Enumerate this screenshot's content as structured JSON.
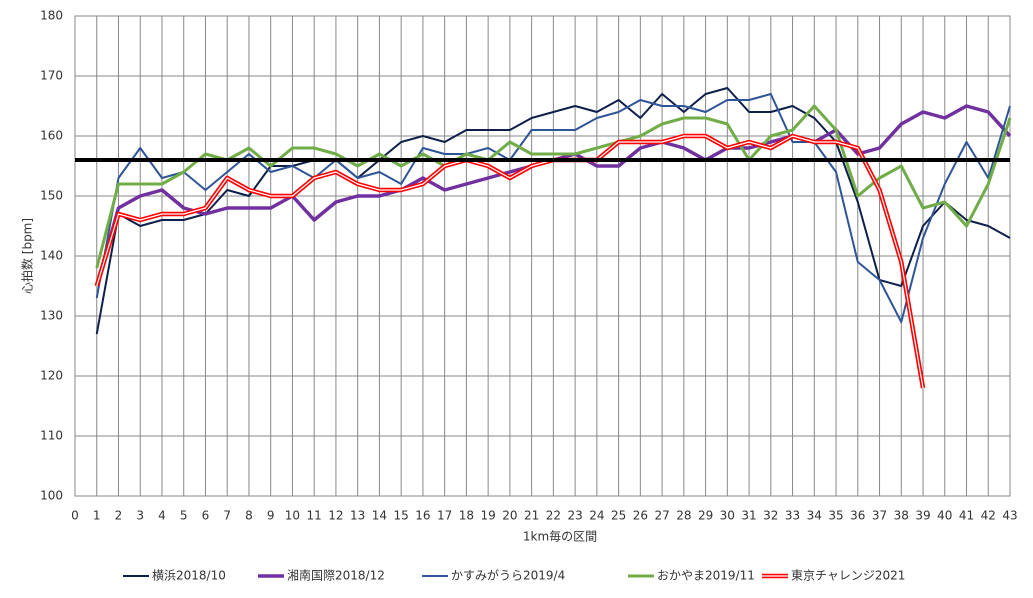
{
  "chart_data": {
    "type": "line",
    "x_label": "1km毎の区間",
    "y_label": "心拍数 [bpm]",
    "x": [
      1,
      2,
      3,
      4,
      5,
      6,
      7,
      8,
      9,
      10,
      11,
      12,
      13,
      14,
      15,
      16,
      17,
      18,
      19,
      20,
      21,
      22,
      23,
      24,
      25,
      26,
      27,
      28,
      29,
      30,
      31,
      32,
      33,
      34,
      35,
      36,
      37,
      38,
      39,
      40,
      41,
      42,
      43
    ],
    "xlim": [
      0,
      43
    ],
    "xticks": [
      0,
      1,
      2,
      3,
      4,
      5,
      6,
      7,
      8,
      9,
      10,
      11,
      12,
      13,
      14,
      15,
      16,
      17,
      18,
      19,
      20,
      21,
      22,
      23,
      24,
      25,
      26,
      27,
      28,
      29,
      30,
      31,
      32,
      33,
      34,
      35,
      36,
      37,
      38,
      39,
      40,
      41,
      42,
      43
    ],
    "ylim": [
      100,
      180
    ],
    "yticks": [
      100,
      110,
      120,
      130,
      140,
      150,
      160,
      170,
      180
    ],
    "grid": true,
    "legend": "bottom",
    "hline": 156,
    "hline_color": "#000000",
    "series": [
      {
        "name": "横浜2018/10",
        "color": "#0d1f4a",
        "width": 2,
        "values": [
          127,
          147,
          145,
          146,
          146,
          147,
          151,
          150,
          155,
          155,
          156,
          156,
          153,
          156,
          159,
          160,
          159,
          161,
          161,
          161,
          163,
          164,
          165,
          164,
          166,
          163,
          167,
          164,
          167,
          168,
          164,
          164,
          165,
          163,
          159,
          149,
          136,
          135,
          145,
          149,
          146,
          145,
          143
        ]
      },
      {
        "name": "湘南国際2018/12",
        "color": "#7030a0",
        "width": 3.5,
        "values": [
          135,
          148,
          150,
          151,
          148,
          147,
          148,
          148,
          148,
          150,
          146,
          149,
          150,
          150,
          151,
          153,
          151,
          152,
          153,
          154,
          155,
          156,
          157,
          155,
          155,
          158,
          159,
          158,
          156,
          158,
          158,
          159,
          160,
          159,
          161,
          157,
          158,
          162,
          164,
          163,
          165,
          164,
          160
        ]
      },
      {
        "name": "かすみがうら2019/4",
        "color": "#2e5597",
        "width": 2,
        "values": [
          133,
          153,
          158,
          153,
          154,
          151,
          154,
          157,
          154,
          155,
          153,
          156,
          153,
          154,
          152,
          158,
          157,
          157,
          158,
          156,
          161,
          161,
          161,
          163,
          164,
          166,
          165,
          165,
          164,
          166,
          166,
          167,
          159,
          159,
          154,
          139,
          136,
          129,
          143,
          152,
          159,
          153,
          165
        ]
      },
      {
        "name": "おかやま2019/11",
        "color": "#70ad47",
        "width": 3,
        "values": [
          138,
          152,
          152,
          152,
          154,
          157,
          156,
          158,
          155,
          158,
          158,
          157,
          155,
          157,
          155,
          157,
          155,
          157,
          156,
          159,
          157,
          157,
          157,
          158,
          159,
          160,
          162,
          163,
          163,
          162,
          156,
          160,
          161,
          165,
          161,
          150,
          153,
          155,
          148,
          149,
          145,
          152,
          163
        ]
      },
      {
        "name": "東京チャレンジ2021",
        "color": "#ff0000",
        "width": 4.5,
        "outline": true,
        "values": [
          135,
          147,
          146,
          147,
          147,
          148,
          153,
          151,
          150,
          150,
          153,
          154,
          152,
          151,
          151,
          152,
          155,
          156,
          155,
          153,
          155,
          156,
          156,
          156,
          159,
          159,
          159,
          160,
          160,
          158,
          159,
          158,
          160,
          159,
          159,
          158,
          151,
          139,
          118,
          null,
          null,
          null,
          null
        ]
      }
    ]
  }
}
